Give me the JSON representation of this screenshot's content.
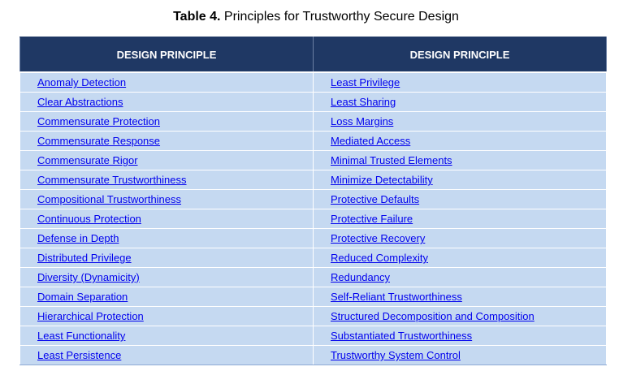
{
  "caption": {
    "label": "Table 4.",
    "text": " Principles for Trustworthy Secure Design"
  },
  "table": {
    "headers": [
      "DESIGN PRINCIPLE",
      "DESIGN PRINCIPLE"
    ],
    "rows": [
      [
        "Anomaly Detection",
        "Least Privilege"
      ],
      [
        "Clear Abstractions",
        "Least Sharing"
      ],
      [
        "Commensurate Protection",
        "Loss Margins"
      ],
      [
        "Commensurate Response",
        "Mediated Access"
      ],
      [
        "Commensurate Rigor",
        "Minimal Trusted Elements"
      ],
      [
        "Commensurate Trustworthiness",
        "Minimize Detectability"
      ],
      [
        "Compositional Trustworthiness",
        "Protective Defaults"
      ],
      [
        "Continuous Protection",
        "Protective Failure"
      ],
      [
        "Defense in Depth",
        "Protective Recovery"
      ],
      [
        "Distributed Privilege",
        "Reduced Complexity"
      ],
      [
        "Diversity (Dynamicity)",
        "Redundancy"
      ],
      [
        "Domain Separation",
        "Self-Reliant Trustworthiness"
      ],
      [
        "Hierarchical Protection",
        "Structured Decomposition and Composition"
      ],
      [
        "Least Functionality",
        "Substantiated Trustworthiness"
      ],
      [
        "Least Persistence",
        "Trustworthy System Control"
      ]
    ]
  },
  "colors": {
    "header_bg": "#1f3864",
    "row_bg": "#c5d9f1",
    "link": "#0000ee"
  }
}
